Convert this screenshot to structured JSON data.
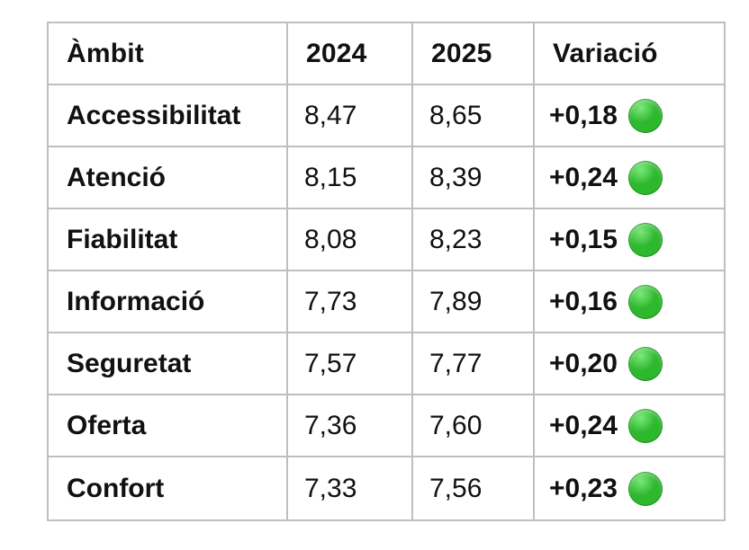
{
  "chart_data": {
    "type": "table",
    "title": "",
    "columns": [
      "Àmbit",
      "2024",
      "2025",
      "Variació"
    ],
    "rows": [
      {
        "ambit": "Accessibilitat",
        "v2024": "8,47",
        "v2025": "8,65",
        "variacio": "+0,18",
        "indicator": "green-circle"
      },
      {
        "ambit": "Atenció",
        "v2024": "8,15",
        "v2025": "8,39",
        "variacio": "+0,24",
        "indicator": "green-circle"
      },
      {
        "ambit": "Fiabilitat",
        "v2024": "8,08",
        "v2025": "8,23",
        "variacio": "+0,15",
        "indicator": "green-circle"
      },
      {
        "ambit": "Informació",
        "v2024": "7,73",
        "v2025": "7,89",
        "variacio": "+0,16",
        "indicator": "green-circle"
      },
      {
        "ambit": "Seguretat",
        "v2024": "7,57",
        "v2025": "7,77",
        "variacio": "+0,20",
        "indicator": "green-circle"
      },
      {
        "ambit": "Oferta",
        "v2024": "7,36",
        "v2025": "7,60",
        "variacio": "+0,24",
        "indicator": "green-circle"
      },
      {
        "ambit": "Confort",
        "v2024": "7,33",
        "v2025": "7,56",
        "variacio": "+0,23",
        "indicator": "green-circle"
      }
    ],
    "layout": {
      "grid": "on",
      "header_row": true
    }
  },
  "style": {
    "indicator_color": "#2eb82e",
    "indicator_highlight": "#7ce87c",
    "indicator_edge": "#1d9e1d",
    "border_color": "#bfbfbf",
    "text_color": "#111111",
    "background_color": "#ffffff"
  }
}
